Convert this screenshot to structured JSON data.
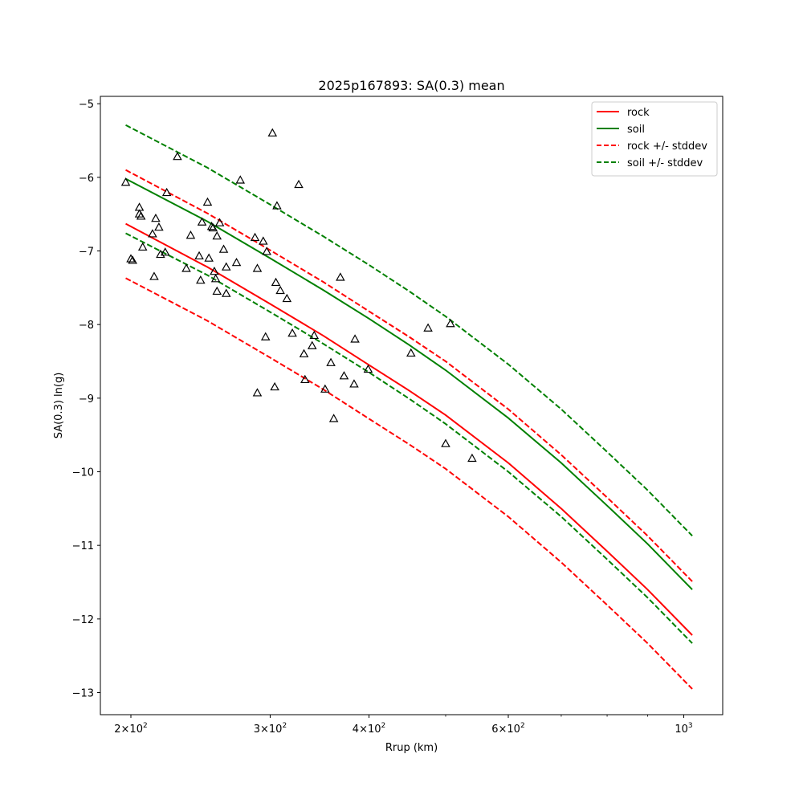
{
  "chart_data": {
    "type": "line",
    "title": "2025p167893: SA(0.3) mean",
    "xlabel": "Rrup (km)",
    "ylabel": "SA(0.3) ln(g)",
    "xscale": "log",
    "xlim": [
      183,
      1120
    ],
    "ylim": [
      -13.3,
      -4.9
    ],
    "grid": false,
    "legend_position": "top-right",
    "x_ticks": [
      {
        "value": 200,
        "base": "2",
        "mantissa": "10",
        "exp": "2"
      },
      {
        "value": 300,
        "base": "3",
        "mantissa": "10",
        "exp": "2"
      },
      {
        "value": 400,
        "base": "4",
        "mantissa": "10",
        "exp": "2"
      },
      {
        "value": 600,
        "base": "6",
        "mantissa": "10",
        "exp": "2"
      },
      {
        "value": 1000,
        "base": "",
        "mantissa": "10",
        "exp": "3"
      }
    ],
    "x_minor_ticks": [
      500,
      700,
      800,
      900
    ],
    "y_ticks": [
      {
        "value": -5,
        "label": "−5"
      },
      {
        "value": -6,
        "label": "−6"
      },
      {
        "value": -7,
        "label": "−7"
      },
      {
        "value": -8,
        "label": "−8"
      },
      {
        "value": -9,
        "label": "−9"
      },
      {
        "value": -10,
        "label": "−10"
      },
      {
        "value": -11,
        "label": "−11"
      },
      {
        "value": -12,
        "label": "−12"
      },
      {
        "value": -13,
        "label": "−13"
      }
    ],
    "x": [
      197,
      250,
      300,
      350,
      400,
      450,
      500,
      600,
      700,
      800,
      900,
      1025
    ],
    "series": [
      {
        "name": "rock",
        "color": "#ff0000",
        "dash": "solid",
        "values": [
          -6.63,
          -7.22,
          -7.72,
          -8.15,
          -8.55,
          -8.9,
          -9.23,
          -9.88,
          -10.5,
          -11.08,
          -11.6,
          -12.22
        ]
      },
      {
        "name": "soil",
        "color": "#008000",
        "dash": "solid",
        "values": [
          -6.02,
          -6.6,
          -7.1,
          -7.53,
          -7.92,
          -8.28,
          -8.62,
          -9.27,
          -9.88,
          -10.46,
          -10.98,
          -11.6
        ]
      },
      {
        "name": "rock +/- stddev",
        "color": "#ff0000",
        "dash": "dashed",
        "values": [
          -5.9,
          -6.49,
          -6.99,
          -7.42,
          -7.82,
          -8.17,
          -8.5,
          -9.15,
          -9.77,
          -10.35,
          -10.87,
          -11.49
        ]
      },
      {
        "name": "",
        "color": "#ff0000",
        "dash": "dashed",
        "values": [
          -7.37,
          -7.95,
          -8.45,
          -8.88,
          -9.28,
          -9.63,
          -9.96,
          -10.61,
          -11.23,
          -11.81,
          -12.33,
          -12.95
        ]
      },
      {
        "name": "soil +/- stddev",
        "color": "#008000",
        "dash": "dashed",
        "values": [
          -5.29,
          -5.87,
          -6.37,
          -6.8,
          -7.19,
          -7.55,
          -7.89,
          -8.54,
          -9.15,
          -9.73,
          -10.25,
          -10.87
        ]
      },
      {
        "name": "",
        "color": "#008000",
        "dash": "dashed",
        "values": [
          -6.76,
          -7.33,
          -7.83,
          -8.26,
          -8.65,
          -9.01,
          -9.35,
          -10.0,
          -10.61,
          -11.19,
          -11.71,
          -12.33
        ]
      }
    ],
    "observations": {
      "marker": "triangle",
      "color": "#000000",
      "points": [
        [
          197,
          -6.07
        ],
        [
          200,
          -7.11
        ],
        [
          201,
          -7.13
        ],
        [
          205,
          -6.41
        ],
        [
          205,
          -6.5
        ],
        [
          206,
          -6.53
        ],
        [
          207,
          -6.95
        ],
        [
          213,
          -6.77
        ],
        [
          214,
          -7.35
        ],
        [
          215,
          -6.56
        ],
        [
          217,
          -6.68
        ],
        [
          218,
          -7.05
        ],
        [
          221,
          -7.02
        ],
        [
          222,
          -6.21
        ],
        [
          229,
          -5.72
        ],
        [
          235,
          -7.24
        ],
        [
          238,
          -6.79
        ],
        [
          244,
          -7.07
        ],
        [
          245,
          -7.4
        ],
        [
          246,
          -6.61
        ],
        [
          250,
          -6.34
        ],
        [
          251,
          -7.1
        ],
        [
          253,
          -6.67
        ],
        [
          254,
          -6.69
        ],
        [
          255,
          -7.28
        ],
        [
          256,
          -7.38
        ],
        [
          257,
          -6.8
        ],
        [
          257,
          -7.55
        ],
        [
          259,
          -6.62
        ],
        [
          262,
          -6.98
        ],
        [
          264,
          -7.22
        ],
        [
          264,
          -7.58
        ],
        [
          272,
          -7.16
        ],
        [
          275,
          -6.04
        ],
        [
          287,
          -6.82
        ],
        [
          289,
          -7.24
        ],
        [
          289,
          -8.93
        ],
        [
          294,
          -6.87
        ],
        [
          296,
          -8.17
        ],
        [
          297,
          -7.01
        ],
        [
          302,
          -5.4
        ],
        [
          304,
          -8.85
        ],
        [
          305,
          -7.43
        ],
        [
          306,
          -6.39
        ],
        [
          309,
          -7.54
        ],
        [
          315,
          -7.65
        ],
        [
          320,
          -8.12
        ],
        [
          326,
          -6.1
        ],
        [
          331,
          -8.4
        ],
        [
          332,
          -8.75
        ],
        [
          339,
          -8.29
        ],
        [
          341,
          -8.15
        ],
        [
          352,
          -8.88
        ],
        [
          358,
          -8.52
        ],
        [
          361,
          -9.28
        ],
        [
          368,
          -7.36
        ],
        [
          372,
          -8.7
        ],
        [
          383,
          -8.81
        ],
        [
          384,
          -8.2
        ],
        [
          399,
          -8.61
        ],
        [
          452,
          -8.39
        ],
        [
          475,
          -8.05
        ],
        [
          500,
          -9.62
        ],
        [
          507,
          -7.99
        ],
        [
          540,
          -9.82
        ]
      ]
    }
  }
}
